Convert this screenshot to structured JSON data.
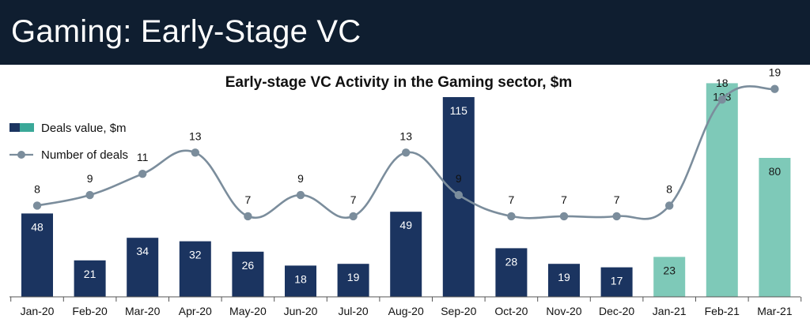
{
  "header": {
    "title": "Gaming: Early-Stage VC"
  },
  "chart_data": {
    "type": "bar+line",
    "title": "Early-stage VC Activity in the Gaming sector, $m",
    "categories": [
      "Jan-20",
      "Feb-20",
      "Mar-20",
      "Apr-20",
      "May-20",
      "Jun-20",
      "Jul-20",
      "Aug-20",
      "Sep-20",
      "Oct-20",
      "Nov-20",
      "Dec-20",
      "Jan-21",
      "Feb-21",
      "Mar-21"
    ],
    "series": [
      {
        "name": "Deals value, $m",
        "type": "bar",
        "values": [
          48,
          21,
          34,
          32,
          26,
          18,
          19,
          49,
          115,
          28,
          19,
          17,
          23,
          123,
          80
        ],
        "colors": [
          "#1b3460",
          "#1b3460",
          "#1b3460",
          "#1b3460",
          "#1b3460",
          "#1b3460",
          "#1b3460",
          "#1b3460",
          "#1b3460",
          "#1b3460",
          "#1b3460",
          "#1b3460",
          "#7ec9b8",
          "#7ec9b8",
          "#7ec9b8"
        ]
      },
      {
        "name": "Number of deals",
        "type": "line",
        "values": [
          8,
          9,
          11,
          13,
          7,
          9,
          7,
          13,
          9,
          7,
          7,
          7,
          8,
          18,
          19
        ],
        "color": "#7b8d9c"
      }
    ],
    "legend": {
      "position": "top-left",
      "bar_swatch_colors": [
        "#1b3460",
        "#3aa898"
      ]
    },
    "xlabel": "",
    "ylabel": ""
  }
}
